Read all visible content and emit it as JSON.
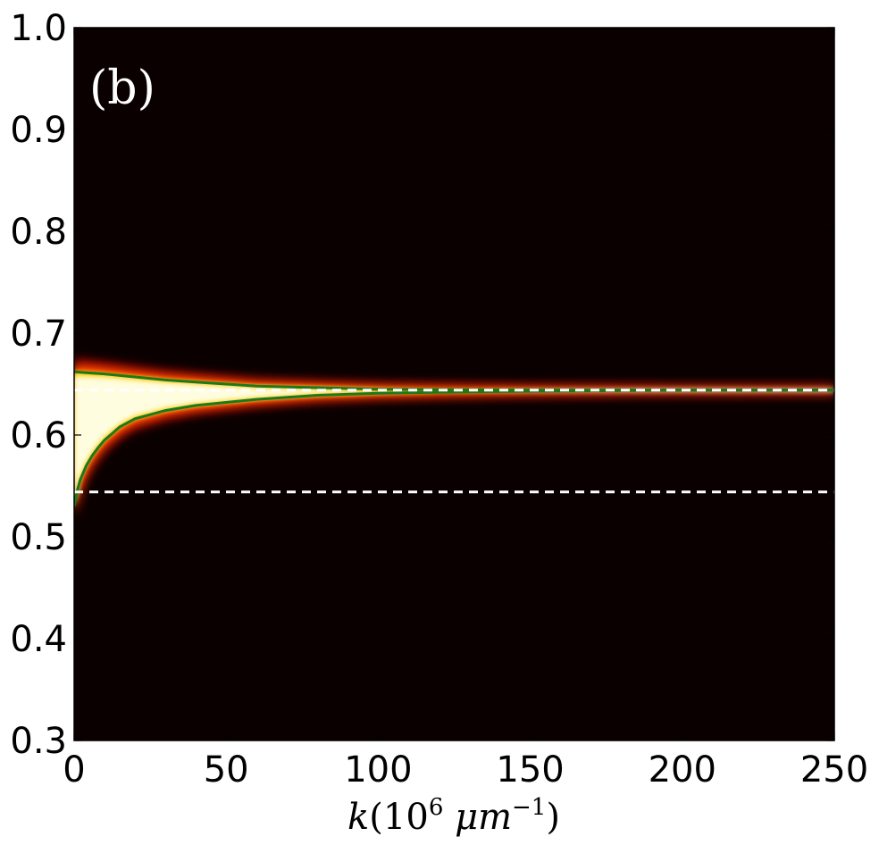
{
  "chart_data": {
    "type": "heatmap",
    "panel_label": "(b)",
    "xlabel": {
      "symbol": "k",
      "open": "(10",
      "exp1": "6",
      "unit": " μm",
      "exp2": "−1",
      "close": ")"
    },
    "ylabel": "",
    "xlim": [
      0,
      250
    ],
    "ylim": [
      0.3,
      1.0
    ],
    "xticks": [
      "0",
      "50",
      "100",
      "150",
      "200",
      "250"
    ],
    "yticks": [
      "0.3",
      "0.4",
      "0.5",
      "0.6",
      "0.7",
      "0.8",
      "0.9",
      "1.0"
    ],
    "colormap": "hot",
    "background_color": "#0a0000",
    "series": [
      {
        "style": "solid",
        "color": "#1a7a1a",
        "x": [
          0,
          5,
          10,
          20,
          30,
          40,
          50,
          60,
          80,
          100,
          120,
          150,
          200,
          250
        ],
        "y": [
          0.662,
          0.661,
          0.66,
          0.657,
          0.654,
          0.652,
          0.65,
          0.648,
          0.6465,
          0.645,
          0.6445,
          0.644,
          0.644,
          0.644
        ]
      },
      {
        "style": "solid",
        "color": "#1a7a1a",
        "x": [
          0,
          1,
          2,
          4,
          6,
          8,
          10,
          15,
          20,
          30,
          40,
          50,
          60,
          80,
          100,
          120,
          150,
          200,
          250
        ],
        "y": [
          0.53,
          0.545,
          0.556,
          0.57,
          0.58,
          0.588,
          0.595,
          0.608,
          0.616,
          0.624,
          0.629,
          0.632,
          0.635,
          0.639,
          0.641,
          0.642,
          0.643,
          0.644,
          0.644
        ]
      },
      {
        "style": "dashed",
        "color": "#ffffff",
        "x": [
          0,
          250
        ],
        "y": [
          0.644,
          0.644
        ]
      },
      {
        "style": "dashed",
        "color": "#ffffff",
        "x": [
          0,
          250
        ],
        "y": [
          0.544,
          0.544
        ]
      }
    ]
  }
}
